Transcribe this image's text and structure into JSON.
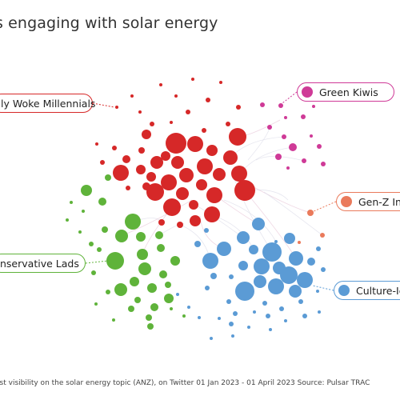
{
  "title": "s engaging with solar energy",
  "footer": "est visibility on the solar energy topic (ANZ), on Twitter 01 Jan 2023 - 01 April 2023 Source: Pulsar TRAC",
  "communities": [
    {
      "key": "woke",
      "label": "ly Woke Millennials",
      "color": "#d62828",
      "border": "#d62828"
    },
    {
      "key": "green",
      "label": "Green Kiwis",
      "color": "#cf3a97",
      "border": "#cf3a97"
    },
    {
      "key": "genz",
      "label": "Gen-Z Inv",
      "color": "#ea7a5b",
      "border": "#ea7a5b"
    },
    {
      "key": "lads",
      "label": "nservative Lads",
      "color": "#5fb33a",
      "border": "#5fb33a"
    },
    {
      "key": "culture",
      "label": "Culture-Ic",
      "color": "#5b9bd5",
      "border": "#5b9bd5"
    }
  ]
}
